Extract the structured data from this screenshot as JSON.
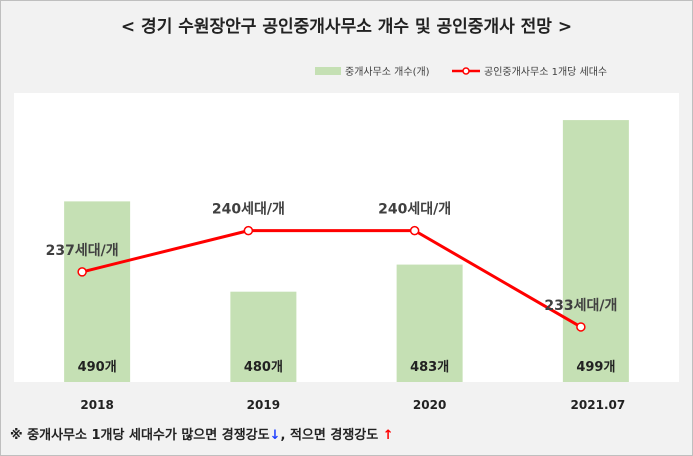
{
  "title": "< 경기 수원장안구 공인중개사무소 개수 및 공인중개사 전망 >",
  "legend": {
    "bar_label": "중개사무소 개수(개)",
    "line_label": "공인중개사무소 1개당 세대수"
  },
  "note": {
    "part1": "※ 중개사무소 1개당 세대수가 많으면 경쟁강도",
    "arrow_down": "↓",
    "part2": ", 적으면 경쟁강도 ",
    "arrow_up": "↑"
  },
  "colors": {
    "bar": "#c5e0b4",
    "line": "#ff0000",
    "plot_bg": "#ffffff",
    "frame_bg": "#f2f2f2"
  },
  "chart_data": {
    "type": "bar",
    "categories": [
      "2018",
      "2019",
      "2020",
      "2021.07"
    ],
    "series": [
      {
        "name": "중개사무소 개수(개)",
        "type": "bar",
        "values": [
          490,
          480,
          483,
          499
        ],
        "labels": [
          "490개",
          "480개",
          "483개",
          "499개"
        ]
      },
      {
        "name": "공인중개사무소 1개당 세대수",
        "type": "line",
        "values": [
          237,
          240,
          240,
          233
        ],
        "labels": [
          "237세대/개",
          "240세대/개",
          "240세대/개",
          "233세대/개"
        ]
      }
    ],
    "bar_axis": {
      "ylim": [
        470,
        502
      ]
    },
    "line_axis": {
      "ylim": [
        229,
        250
      ]
    },
    "grid": false,
    "legend_position": "top-right"
  }
}
